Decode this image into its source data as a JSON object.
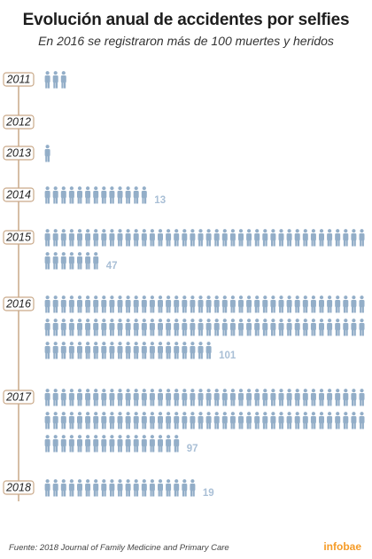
{
  "header": {
    "title": "Evolución anual de accidentes por selfies",
    "subtitle": "En 2016 se registraron más de 100 muertes y heridos"
  },
  "footer": {
    "source": "Fuente: 2018 Journal of Family Medicine and Primary Care",
    "brand": "infobae"
  },
  "colors": {
    "person": "#93aec8",
    "count": "#a9bfd6",
    "timeline": "#c9a989",
    "brand": "#f59b27"
  },
  "chart_data": {
    "type": "pictogram",
    "unit_icon": "person-icon",
    "categories": [
      "2011",
      "2012",
      "2013",
      "2014",
      "2015",
      "2016",
      "2017",
      "2018"
    ],
    "values": [
      3,
      0,
      1,
      13,
      47,
      101,
      97,
      19
    ],
    "value_labels": [
      "",
      "",
      "",
      "13",
      "47",
      "101",
      "97",
      "19"
    ]
  }
}
